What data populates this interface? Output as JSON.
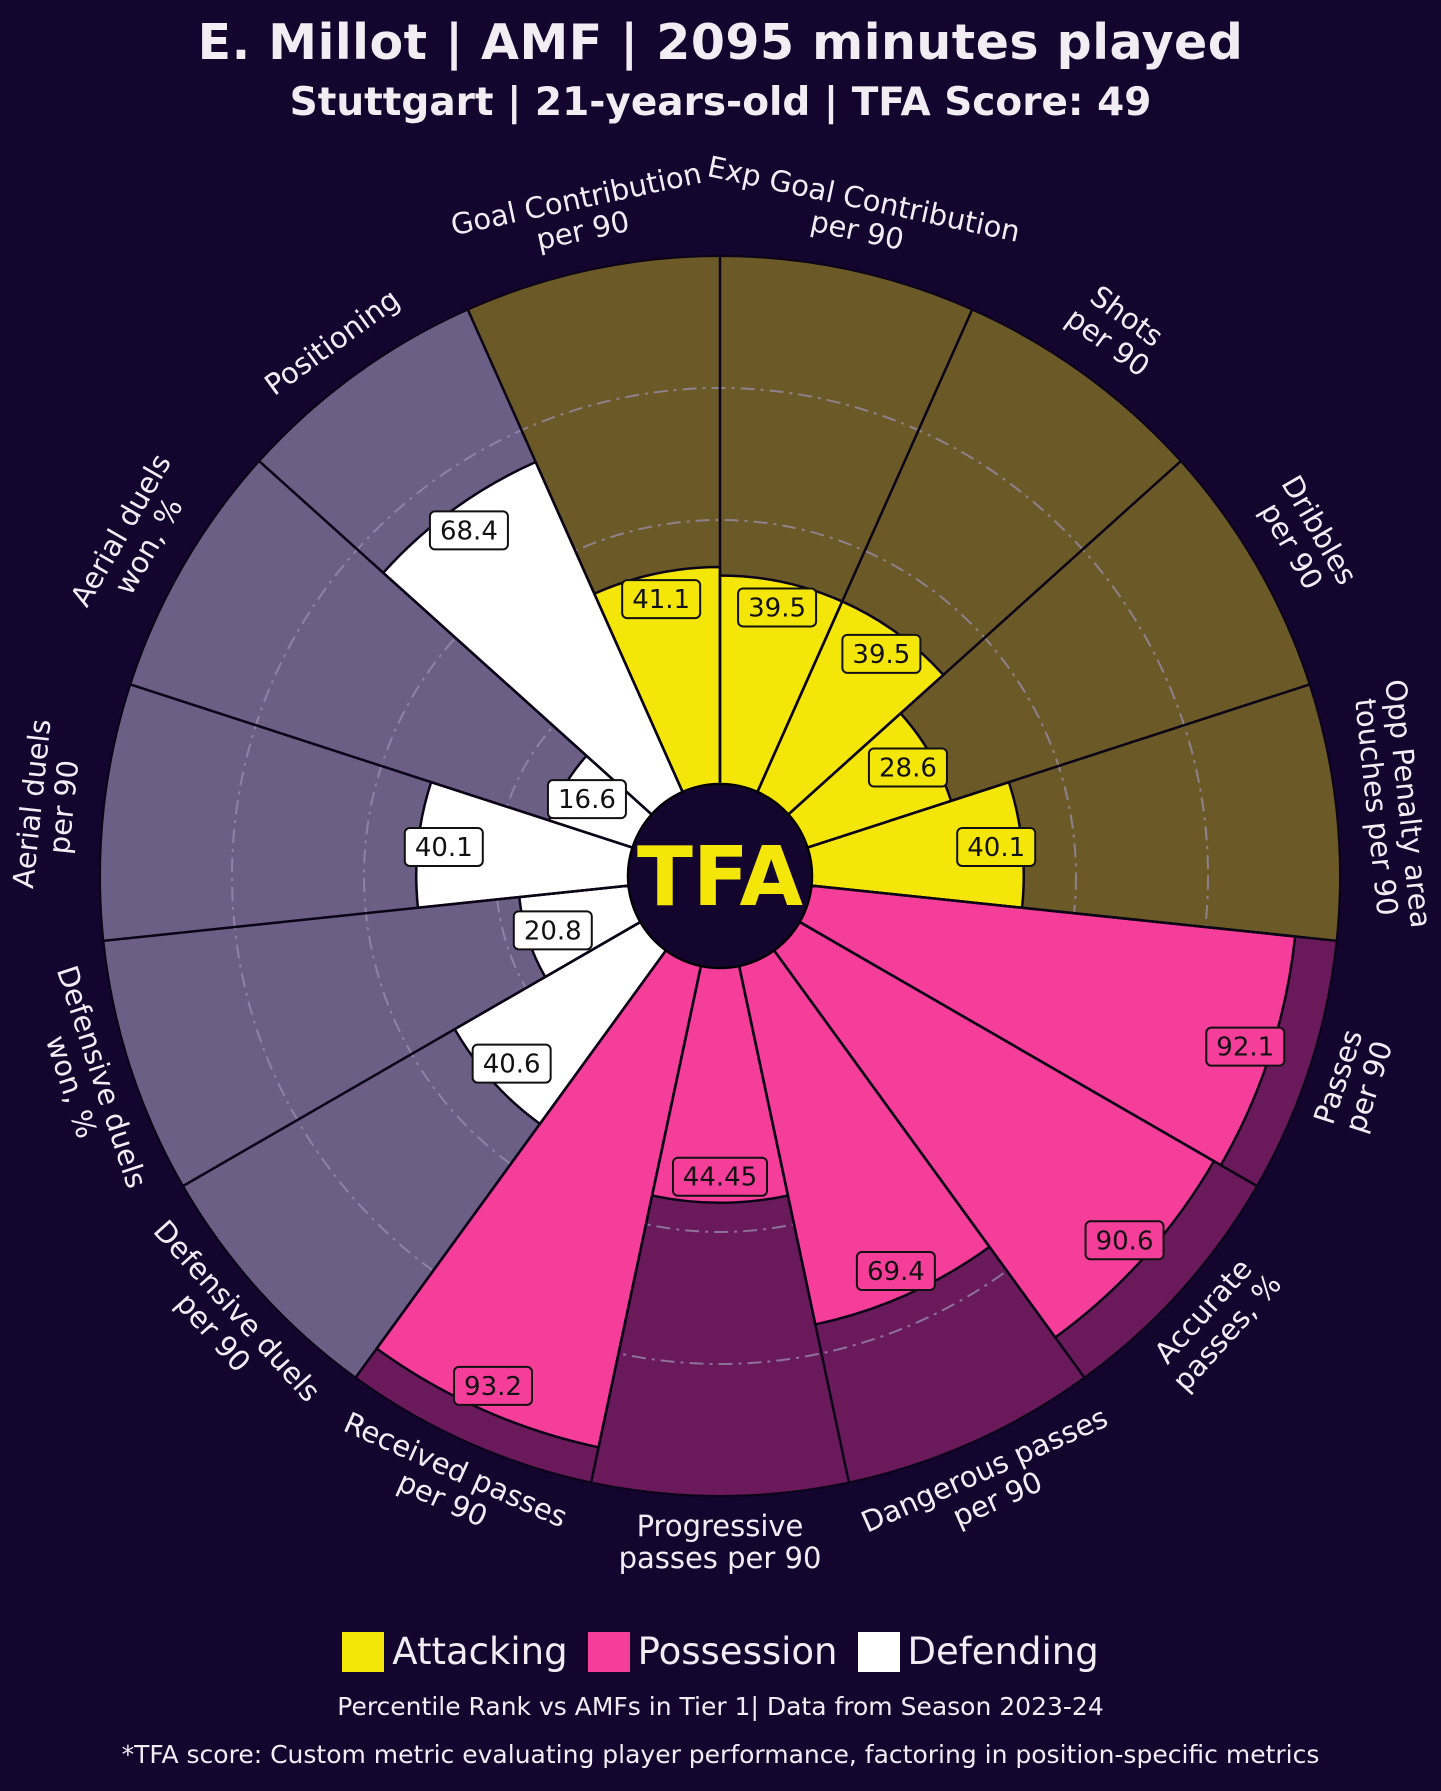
{
  "header": {
    "title": "E. Millot | AMF | 2095 minutes played",
    "subtitle": "Stuttgart | 21-years-old | TFA Score: 49"
  },
  "center_logo": "TFA",
  "legend": [
    {
      "label": "Attacking",
      "color": "#f5e60a"
    },
    {
      "label": "Possession",
      "color": "#f53d9a"
    },
    {
      "label": "Defending",
      "color": "#ffffff"
    }
  ],
  "footer": {
    "note": "Percentile Rank vs AMFs in Tier 1| Data from Season 2023-24",
    "definition": "*TFA score: Custom metric evaluating player performance, factoring in position-specific metrics"
  },
  "colors": {
    "background": "#13052e",
    "attacking_fill": "#f5e60a",
    "attacking_bg": "#6b5a27",
    "possession_fill": "#f53d9a",
    "possession_bg": "#6a1a5b",
    "defending_fill": "#ffffff",
    "defending_bg": "#6b5f85",
    "text": "#f1edf3"
  },
  "chart_data": {
    "type": "polar-bar",
    "title": "E. Millot | AMF | 2095 minutes played",
    "subtitle": "Stuttgart | 21-years-old | TFA Score: 49",
    "rlim": [
      0,
      100
    ],
    "gridlines": [
      25,
      50,
      75
    ],
    "categories": [
      {
        "label": "Goal Contribution\nper 90",
        "value": 41.1,
        "display": "41.1",
        "group": "Attacking"
      },
      {
        "label": "Exp Goal Contribution\nper 90",
        "value": 39.5,
        "display": "39.5",
        "group": "Attacking"
      },
      {
        "label": "Shots\nper 90",
        "value": 39.5,
        "display": "39.5",
        "group": "Attacking"
      },
      {
        "label": "Dribbles\nper 90",
        "value": 28.6,
        "display": "28.6",
        "group": "Attacking"
      },
      {
        "label": "Opp Penalty area\ntouches per 90",
        "value": 40.1,
        "display": "40.1",
        "group": "Attacking"
      },
      {
        "label": "Passes\nper 90",
        "value": 92.1,
        "display": "92.1",
        "group": "Possession"
      },
      {
        "label": "Accurate\npasses, %",
        "value": 90.6,
        "display": "90.6",
        "group": "Possession"
      },
      {
        "label": "Dangerous passes\nper 90",
        "value": 69.4,
        "display": "69.4",
        "group": "Possession"
      },
      {
        "label": "Progressive\npasses per 90",
        "value": 44.45,
        "display": "44.45",
        "group": "Possession"
      },
      {
        "label": "Received passes\nper 90",
        "value": 93.2,
        "display": "93.2",
        "group": "Possession"
      },
      {
        "label": "Defensive duels\nper 90",
        "value": 40.6,
        "display": "40.6",
        "group": "Defending"
      },
      {
        "label": "Defensive duels\nwon, %",
        "value": 20.8,
        "display": "20.8",
        "group": "Defending"
      },
      {
        "label": "Aerial duels\nper 90",
        "value": 40.1,
        "display": "40.1",
        "group": "Defending"
      },
      {
        "label": "Aerial duels\nwon, %",
        "value": 16.6,
        "display": "16.6",
        "group": "Defending"
      },
      {
        "label": "Positioning",
        "value": 68.4,
        "display": "68.4",
        "group": "Defending"
      }
    ]
  }
}
